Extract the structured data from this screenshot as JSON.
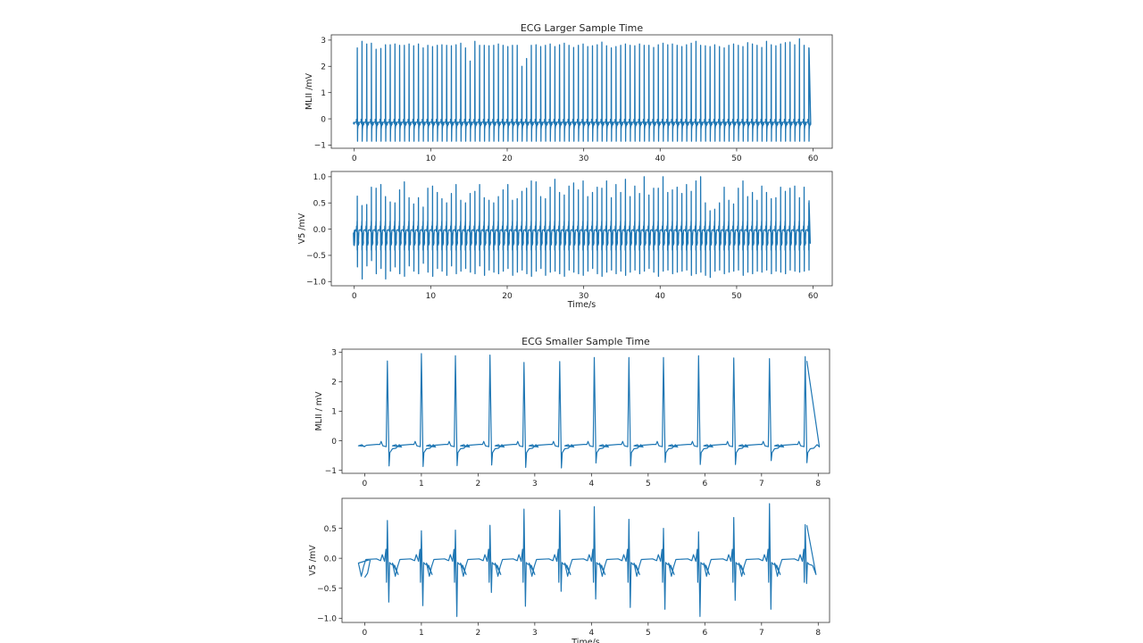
{
  "chart_data": [
    {
      "type": "line",
      "figure_title": "ECG Larger Sample Time",
      "title": "ECG Larger Sample Time",
      "xlabel": "",
      "ylabel": "MLII /mV",
      "xlim": [
        -3,
        62.5
      ],
      "ylim": [
        -1.12,
        3.2
      ],
      "xticks": [
        0,
        10,
        20,
        30,
        40,
        50,
        60
      ],
      "yticks": [
        -1,
        0,
        1,
        2,
        3
      ],
      "ytick_labels": [
        "−1",
        "0",
        "1",
        "2",
        "3"
      ],
      "color": "#1f77b4",
      "first_beat_s": 0.41,
      "rr_s": 0.615,
      "baseline_mV": -0.15,
      "trough_mV": -0.85,
      "r_peaks_mV": [
        2.7,
        2.95,
        2.85,
        2.88,
        2.65,
        2.68,
        2.82,
        2.82,
        2.85,
        2.8,
        2.8,
        2.85,
        2.78,
        2.85,
        2.7,
        2.8,
        2.75,
        2.8,
        2.82,
        2.8,
        2.78,
        2.82,
        2.88,
        2.7,
        2.2,
        2.95,
        2.8,
        2.8,
        2.78,
        2.8,
        2.85,
        2.8,
        2.75,
        2.8,
        2.8,
        2.0,
        2.3,
        2.8,
        2.82,
        2.75,
        2.8,
        2.85,
        2.75,
        2.82,
        2.88,
        2.8,
        2.72,
        2.8,
        2.85,
        2.75,
        2.78,
        2.82,
        2.92,
        2.78,
        2.7,
        2.75,
        2.8,
        2.85,
        2.8,
        2.78,
        2.85,
        2.8,
        2.8,
        2.72,
        2.82,
        2.88,
        2.82,
        2.85,
        2.8,
        2.75,
        2.82,
        2.88,
        2.95,
        2.8,
        2.78,
        2.75,
        2.82,
        2.75,
        2.7,
        2.8,
        2.85,
        2.8,
        2.75,
        2.9,
        2.85,
        2.8,
        2.72,
        2.95,
        2.82,
        2.78,
        2.85,
        2.9,
        2.92,
        2.82,
        3.05,
        2.8,
        2.7
      ]
    },
    {
      "type": "line",
      "title": "",
      "xlabel": "Time/s",
      "ylabel": "V5 /mV",
      "xlim": [
        -3,
        62.5
      ],
      "ylim": [
        -1.08,
        1.1
      ],
      "xticks": [
        0,
        10,
        20,
        30,
        40,
        50,
        60
      ],
      "yticks": [
        -1.0,
        -0.5,
        0.0,
        0.5,
        1.0
      ],
      "ytick_labels": [
        "−1.0",
        "−0.5",
        "0.0",
        "0.5",
        "1.0"
      ],
      "color": "#1f77b4",
      "first_beat_s": 0.41,
      "rr_s": 0.615,
      "baseline_mV": -0.02,
      "r_peaks_mV": [
        0.63,
        0.45,
        0.47,
        0.8,
        0.78,
        0.85,
        0.62,
        0.52,
        0.5,
        0.75,
        0.9,
        0.6,
        0.48,
        0.6,
        0.42,
        0.78,
        0.82,
        0.7,
        0.58,
        0.5,
        0.68,
        0.85,
        0.55,
        0.5,
        0.68,
        0.72,
        0.85,
        0.6,
        0.55,
        0.5,
        0.62,
        0.75,
        0.85,
        0.55,
        0.58,
        0.72,
        0.78,
        0.92,
        0.9,
        0.62,
        0.58,
        0.8,
        0.95,
        0.7,
        0.65,
        0.82,
        0.88,
        0.75,
        0.92,
        0.62,
        0.7,
        0.8,
        0.78,
        0.92,
        0.6,
        0.85,
        0.7,
        0.95,
        0.62,
        0.82,
        0.68,
        1.0,
        0.65,
        0.78,
        0.78,
        1.0,
        0.7,
        0.75,
        0.8,
        0.68,
        0.85,
        0.72,
        0.92,
        1.0,
        0.5,
        0.35,
        0.38,
        0.5,
        0.8,
        0.55,
        0.48,
        0.78,
        0.92,
        0.62,
        0.7,
        0.55,
        0.82,
        0.7,
        0.58,
        0.6,
        0.8,
        0.72,
        0.78,
        0.82,
        0.6,
        0.8,
        0.5
      ],
      "s_troughs_mV": [
        -0.72,
        -0.95,
        -0.7,
        -0.6,
        -0.85,
        -0.75,
        -0.95,
        -0.8,
        -0.72,
        -0.85,
        -0.9,
        -0.7,
        -0.8,
        -0.85,
        -0.65,
        -0.82,
        -0.9,
        -0.75,
        -0.8,
        -0.88,
        -0.7,
        -0.85,
        -0.8,
        -0.75,
        -0.82,
        -0.85,
        -0.7,
        -0.88,
        -0.78,
        -0.82,
        -0.85,
        -0.8,
        -0.75,
        -0.88,
        -0.82,
        -0.78,
        -0.85,
        -0.9,
        -0.8,
        -0.75,
        -0.88,
        -0.82,
        -0.8,
        -0.85,
        -0.9,
        -0.78,
        -0.82,
        -0.85,
        -0.88,
        -0.8,
        -0.75,
        -0.85,
        -0.9,
        -0.82,
        -0.78,
        -0.85,
        -0.8,
        -0.88,
        -0.82,
        -0.78,
        -0.85,
        -0.8,
        -0.75,
        -0.82,
        -0.9,
        -0.8,
        -0.78,
        -0.85,
        -0.82,
        -0.8,
        -0.78,
        -0.88,
        -0.85,
        -0.82,
        -0.88,
        -0.92,
        -0.8,
        -0.78,
        -0.85,
        -0.82,
        -0.8,
        -0.78,
        -0.88,
        -0.82,
        -0.85,
        -0.8,
        -0.82,
        -0.78,
        -0.85,
        -0.8,
        -0.82,
        -0.85,
        -0.78,
        -0.8,
        -0.82,
        -0.8,
        -0.78
      ]
    },
    {
      "type": "line",
      "figure_title": "ECG Smaller Sample Time",
      "title": "ECG Smaller Sample Time",
      "xlabel": "",
      "ylabel": "MLII / mV",
      "xlim": [
        -0.4,
        8.2
      ],
      "ylim": [
        -1.1,
        3.1
      ],
      "xticks": [
        0,
        1,
        2,
        3,
        4,
        5,
        6,
        7,
        8
      ],
      "yticks": [
        -1,
        0,
        1,
        2,
        3
      ],
      "ytick_labels": [
        "−1",
        "0",
        "1",
        "2",
        "3"
      ],
      "color": "#1f77b4",
      "baseline_mV": -0.15,
      "beat_times_s": [
        0.41,
        1.01,
        1.61,
        2.22,
        2.82,
        3.45,
        4.06,
        4.67,
        5.28,
        5.9,
        6.52,
        7.15,
        7.78
      ],
      "r_peaks_mV": [
        2.7,
        2.95,
        2.88,
        2.9,
        2.65,
        2.68,
        2.82,
        2.82,
        2.82,
        2.88,
        2.8,
        2.78,
        2.85
      ],
      "s_troughs_mV": [
        -0.85,
        -0.87,
        -0.84,
        -0.82,
        -0.9,
        -0.92,
        -0.75,
        -0.85,
        -0.73,
        -0.8,
        -0.8,
        -0.67,
        -0.74
      ]
    },
    {
      "type": "line",
      "title": "",
      "xlabel": "Time/s",
      "ylabel": "V5 /mV",
      "xlim": [
        -0.4,
        8.2
      ],
      "ylim": [
        -1.07,
        1.0
      ],
      "xticks": [
        0,
        1,
        2,
        3,
        4,
        5,
        6,
        7,
        8
      ],
      "yticks": [
        -1.0,
        -0.5,
        0.0,
        0.5
      ],
      "ytick_labels": [
        "−1.0",
        "−0.5",
        "0.0",
        "0.5"
      ],
      "color": "#1f77b4",
      "baseline_mV": -0.02,
      "beat_times_s": [
        0.41,
        1.01,
        1.61,
        2.22,
        2.82,
        3.45,
        4.06,
        4.67,
        5.28,
        5.9,
        6.52,
        7.15,
        7.78
      ],
      "r_peaks_mV": [
        0.63,
        0.46,
        0.47,
        0.55,
        0.82,
        0.8,
        0.86,
        0.65,
        0.5,
        0.44,
        0.68,
        0.91,
        0.56
      ],
      "s_troughs_mV": [
        -0.73,
        -0.79,
        -0.97,
        -0.57,
        -0.8,
        -0.55,
        -0.68,
        -0.82,
        -0.85,
        -0.97,
        -0.7,
        -0.85,
        -0.42
      ]
    }
  ]
}
